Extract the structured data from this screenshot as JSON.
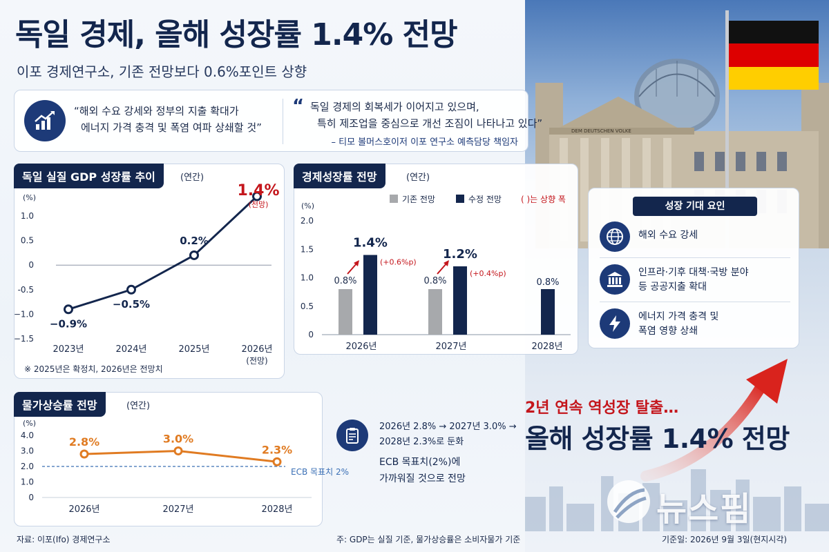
{
  "header": {
    "title": "독일 경제, 올해 성장률 1.4% 전망",
    "subtitle": "이포 경제연구소, 기존 전망보다 0.6%포인트 상향"
  },
  "quotes": {
    "left_line1": "“해외 수요 강세와 정부의 지출 확대가",
    "left_line2": "에너지 가격 충격 및 폭염 여파 상쇄할 것”",
    "right_line1": "독일 경제의 회복세가 이어지고 있으며,",
    "right_line2": "특히 제조업을 중심으로 개선 조짐이 나타나고 있다”",
    "right_source": "– 티모 볼머스호이저 이포 연구소 예측담당 책임자"
  },
  "colors": {
    "navy": "#13264d",
    "blue": "#1d3a78",
    "gray": "#a7a9ac",
    "red": "#c4161c",
    "orange": "#e07b22",
    "dashed": "#3a6fb5"
  },
  "chart_data": [
    {
      "type": "line",
      "title": "독일 실질 GDP 성장률 추이",
      "unit_note": "(연간)",
      "ylabel": "(%)",
      "categories": [
        "2023년",
        "2024년",
        "2025년",
        "2026년"
      ],
      "category_sub": [
        "",
        "",
        "",
        "(전망)"
      ],
      "values": [
        -0.9,
        -0.5,
        0.2,
        1.4
      ],
      "value_labels": [
        "−0.9%",
        "−0.5%",
        "0.2%",
        "1.4%"
      ],
      "highlight_label": "1.4%",
      "highlight_sub": "(전망)",
      "ylim": [
        -1.5,
        1.0
      ],
      "yticks": [
        "1.0",
        "0.5",
        "0",
        "-0.5",
        "−1.0",
        "−1.5"
      ],
      "ytick_values": [
        1.0,
        0.5,
        0,
        -0.5,
        -1.0,
        -1.5
      ],
      "footnote": "※ 2025년은 확정치, 2026년은 전망치"
    },
    {
      "type": "bar",
      "title": "경제성장률 전망",
      "unit_note": "(연간)",
      "ylabel": "(%)",
      "categories": [
        "2026년",
        "2027년",
        "2028년"
      ],
      "series": [
        {
          "name": "기존 전망",
          "values": [
            0.8,
            0.8,
            null
          ],
          "labels": [
            "0.8%",
            "0.8%",
            ""
          ]
        },
        {
          "name": "수정 전망",
          "values": [
            1.4,
            1.2,
            0.8
          ],
          "labels": [
            "1.4%",
            "1.2%",
            "0.8%"
          ]
        }
      ],
      "increase_labels": [
        "(+0.6%p)",
        "(+0.4%p)",
        ""
      ],
      "legend_note": "( )는 상향 폭",
      "ylim": [
        0,
        2.0
      ],
      "yticks": [
        "2.0",
        "1.5",
        "1.0",
        "0.5",
        "0"
      ],
      "ytick_values": [
        2.0,
        1.5,
        1.0,
        0.5,
        0
      ]
    },
    {
      "type": "line",
      "title": "물가상승률 전망",
      "unit_note": "(연간)",
      "ylabel": "(%)",
      "categories": [
        "2026년",
        "2027년",
        "2028년"
      ],
      "values": [
        2.8,
        3.0,
        2.3
      ],
      "value_labels": [
        "2.8%",
        "3.0%",
        "2.3%"
      ],
      "ylim": [
        0,
        4.0
      ],
      "yticks": [
        "4.0",
        "3.0",
        "2.0",
        "1.0",
        "0"
      ],
      "ytick_values": [
        4.0,
        3.0,
        2.0,
        1.0,
        0
      ],
      "reference_line": {
        "value": 2.0,
        "label": "ECB 목표치 2%"
      }
    }
  ],
  "inflation_note": {
    "line1": "2026년 2.8% → 2027년 3.0% →",
    "line2": "2028년 2.3%로 둔화",
    "line3": "ECB 목표치(2%)에",
    "line4": "가까워질 것으로 전망"
  },
  "factors": {
    "title": "성장 기대 요인",
    "items": [
      {
        "icon": "globe-icon",
        "line1": "해외 수요 강세",
        "line2": ""
      },
      {
        "icon": "government-building-icon",
        "line1": "인프라·기후 대책·국방 분야",
        "line2": "등 공공지출 확대"
      },
      {
        "icon": "lightning-icon",
        "line1": "에너지 가격 충격 및",
        "line2": "폭염 영향 상쇄"
      }
    ]
  },
  "headline": {
    "line1": "2년 연속 역성장 탈출…",
    "line2": "올해 성장률 1.4% 전망"
  },
  "building_sign": "DEM DEUTSCHEN VOLKE",
  "logo_text": "뉴스핌",
  "footer": {
    "source": "자료: 이포(Ifo) 경제연구소",
    "note": "주: GDP는 실질 기준, 물가상승률은 소비자물가 기준",
    "date": "기준일: 2026년 9월 3일(현지시각)"
  }
}
